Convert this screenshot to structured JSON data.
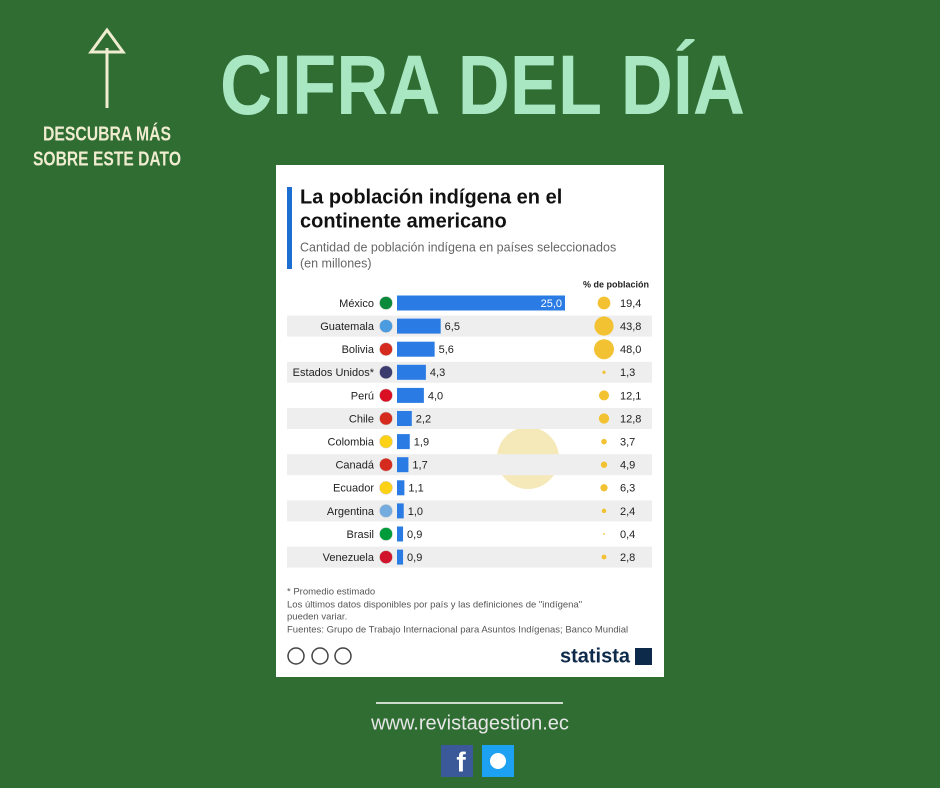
{
  "header": {
    "title": "CIFRA DEL DÍA",
    "link_lines": [
      "DESCUBRA MÁS",
      "SOBRE ESTE DATO"
    ]
  },
  "chart_data": {
    "type": "bar",
    "orientation": "horizontal",
    "title_lines": [
      "La población indígena en el",
      "continente americano"
    ],
    "subtitle_lines": [
      "Cantidad de población indígena en países seleccionados",
      "(en millones)"
    ],
    "categories": [
      "México",
      "Guatemala",
      "Bolivia",
      "Estados Unidos*",
      "Perú",
      "Chile",
      "Colombia",
      "Canadá",
      "Ecuador",
      "Argentina",
      "Brasil",
      "Venezuela"
    ],
    "values": [
      25.0,
      6.5,
      5.6,
      4.3,
      4.0,
      2.2,
      1.9,
      1.7,
      1.1,
      1.0,
      0.9,
      0.9
    ],
    "value_labels": [
      "25,0",
      "6,5",
      "5,6",
      "4,3",
      "4,0",
      "2,2",
      "1,9",
      "1,7",
      "1,1",
      "1,0",
      "0,9",
      "0,9"
    ],
    "color": "#2a7be4",
    "share_label": "% de población",
    "share_values": [
      19.4,
      43.8,
      48.0,
      1.3,
      12.1,
      12.8,
      3.7,
      4.9,
      6.3,
      2.4,
      0.4,
      2.8
    ],
    "share_value_labels": [
      "19,4",
      "43,8",
      "48,0",
      "1,3",
      "12,1",
      "12,8",
      "3,7",
      "4,9",
      "6,3",
      "2,4",
      "0,4",
      "2,8"
    ],
    "share_color": "#f2c232",
    "notes": [
      "* Promedio estimado",
      "Los últimos datos disponibles por país y las definiciones de \"indígena\"",
      "pueden variar.",
      "Fuentes: Grupo de Trabajo Internacional para Asuntos Indígenas; Banco Mundial"
    ],
    "brand": "statista"
  },
  "footer": {
    "url": "www.revistagestion.ec"
  }
}
